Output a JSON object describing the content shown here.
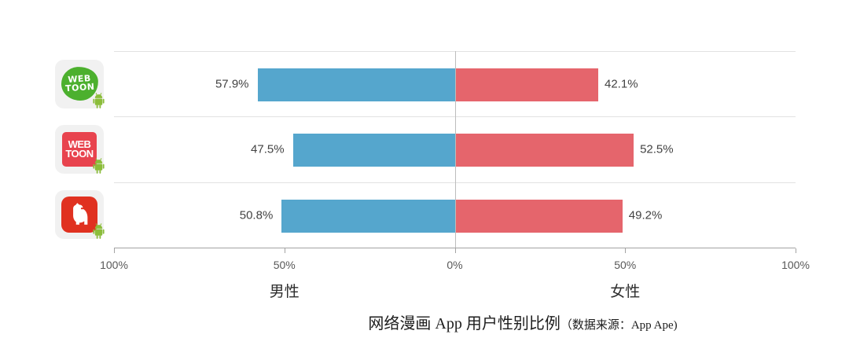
{
  "chart_data": {
    "type": "bar",
    "variant": "diverging-horizontal",
    "title": "网络漫画 App 用户性别比例",
    "source_note": "（数据来源：App Ape)",
    "x_axis": {
      "left_label": "男性",
      "right_label": "女性",
      "ticks": [
        "100%",
        "50%",
        "0%",
        "50%",
        "100%"
      ],
      "tick_positions_percent": [
        0,
        25,
        50,
        75,
        100
      ],
      "range_percent_each_side": [
        0,
        100
      ],
      "grid": true
    },
    "series": [
      {
        "name": "男性",
        "side": "left",
        "color": "#55a6cd",
        "values": [
          57.9,
          47.5,
          50.8
        ]
      },
      {
        "name": "女性",
        "side": "right",
        "color": "#e5656c",
        "values": [
          42.1,
          52.5,
          49.2
        ]
      }
    ],
    "rows": [
      {
        "icon": "webtoon-green-app-icon",
        "icon_text_line1": "WEB",
        "icon_text_line2": "TOON",
        "male": 57.9,
        "female": 42.1,
        "male_label": "57.9%",
        "female_label": "42.1%"
      },
      {
        "icon": "webtoon-red-app-icon",
        "icon_text_line1": "WEB",
        "icon_text_line2": "TOON",
        "male": 47.5,
        "female": 52.5,
        "male_label": "47.5%",
        "female_label": "52.5%"
      },
      {
        "icon": "white-dog-red-app-icon",
        "icon_text_line1": "",
        "icon_text_line2": "",
        "male": 50.8,
        "female": 49.2,
        "male_label": "50.8%",
        "female_label": "49.2%"
      }
    ]
  },
  "colors": {
    "male_bar": "#55a6cd",
    "female_bar": "#e5656c",
    "gridline": "#e2e2e2",
    "center_line": "#bdbdbd",
    "axis_line": "#a3a3a3",
    "tick_label": "#585858",
    "value_label": "#424242",
    "icon_tile_bg": "#f1f1f1",
    "webtoon_green": "#4cb02e",
    "webtoon_red": "#e8434e",
    "dog_icon_red": "#e03120",
    "android_badge_green": "#8bbd3a"
  }
}
